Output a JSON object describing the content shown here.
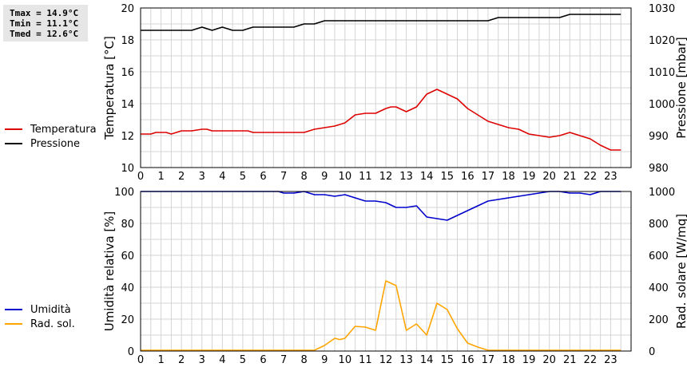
{
  "stats": {
    "tmax": "Tmax = 14.9°C",
    "tmin": "Tmin = 11.1°C",
    "tmed": "Tmed = 12.6°C"
  },
  "colors": {
    "temperature": "#dd0000",
    "pressure": "#000000",
    "humidity": "#0000cc",
    "radiation": "#ffa500",
    "grid": "#d4d4d4"
  },
  "chart_data": [
    {
      "type": "line",
      "x_ticks": [
        "0",
        "1",
        "2",
        "3",
        "4",
        "5",
        "6",
        "7",
        "8",
        "9",
        "10",
        "11",
        "12",
        "13",
        "14",
        "15",
        "16",
        "17",
        "18",
        "19",
        "20",
        "21",
        "22",
        "23"
      ],
      "xlim": [
        0,
        24
      ],
      "ylabel": "Temperatura [°C]",
      "ylim": [
        10,
        20
      ],
      "y_ticks": [
        "10",
        "12",
        "14",
        "16",
        "18",
        "20"
      ],
      "y2label": "Pressione [mbar]",
      "y2lim": [
        980,
        1030
      ],
      "y2_ticks": [
        "980",
        "990",
        "1000",
        "1010",
        "1020",
        "1030"
      ],
      "grid": true,
      "legend_position": "left",
      "series": [
        {
          "name": "Temperatura",
          "axis": "left",
          "x": [
            0,
            0.5,
            0.75,
            1,
            1.25,
            1.5,
            2,
            2.5,
            3,
            3.25,
            3.5,
            4,
            4.5,
            5,
            5.25,
            5.5,
            6,
            6.5,
            7,
            7.5,
            8,
            8.5,
            9,
            9.5,
            9.75,
            10,
            10.5,
            11,
            11.5,
            12,
            12.25,
            12.5,
            13,
            13.5,
            14,
            14.5,
            15,
            15.5,
            16,
            16.5,
            17,
            17.5,
            18,
            18.5,
            19,
            19.5,
            20,
            20.5,
            21,
            21.5,
            22,
            22.5,
            23,
            23.5
          ],
          "y": [
            12.1,
            12.1,
            12.2,
            12.2,
            12.2,
            12.1,
            12.3,
            12.3,
            12.4,
            12.4,
            12.3,
            12.3,
            12.3,
            12.3,
            12.3,
            12.2,
            12.2,
            12.2,
            12.2,
            12.2,
            12.2,
            12.4,
            12.5,
            12.6,
            12.7,
            12.8,
            13.3,
            13.4,
            13.4,
            13.7,
            13.8,
            13.8,
            13.5,
            13.8,
            14.6,
            14.9,
            14.6,
            14.3,
            13.7,
            13.3,
            12.9,
            12.7,
            12.5,
            12.4,
            12.1,
            12.0,
            11.9,
            12.0,
            12.2,
            12.0,
            11.8,
            11.4,
            11.1,
            11.1
          ]
        },
        {
          "name": "Pressione",
          "axis": "right",
          "x": [
            0,
            2.5,
            3,
            3.5,
            4,
            4.5,
            5,
            5.5,
            6,
            6.5,
            7,
            7.5,
            8,
            8.5,
            9,
            9.5,
            10,
            10.5,
            11,
            11.5,
            12,
            12.5,
            13,
            13.5,
            14,
            14.5,
            15,
            15.5,
            16,
            16.5,
            17,
            17.5,
            18,
            18.5,
            19,
            19.5,
            20,
            20.5,
            21,
            21.5,
            22,
            22.5,
            23,
            23.5
          ],
          "y": [
            1023,
            1023,
            1024,
            1023,
            1024,
            1023,
            1023,
            1024,
            1024,
            1024,
            1024,
            1024,
            1025,
            1025,
            1026,
            1026,
            1026,
            1026,
            1026,
            1026,
            1026,
            1026,
            1026,
            1026,
            1026,
            1026,
            1026,
            1026,
            1026,
            1026,
            1026,
            1027,
            1027,
            1027,
            1027,
            1027,
            1027,
            1027,
            1028,
            1028,
            1028,
            1028,
            1028,
            1028
          ]
        }
      ]
    },
    {
      "type": "line",
      "x_ticks": [
        "0",
        "1",
        "2",
        "3",
        "4",
        "5",
        "6",
        "7",
        "8",
        "9",
        "10",
        "11",
        "12",
        "13",
        "14",
        "15",
        "16",
        "17",
        "18",
        "19",
        "20",
        "21",
        "22",
        "23"
      ],
      "xlim": [
        0,
        24
      ],
      "ylabel": "Umidità relativa [%]",
      "ylim": [
        0,
        100
      ],
      "y_ticks": [
        "0",
        "20",
        "40",
        "60",
        "80",
        "100"
      ],
      "y2label": "Rad. solare [W/mq]",
      "y2lim": [
        0,
        1000
      ],
      "y2_ticks": [
        "0",
        "200",
        "400",
        "600",
        "800",
        "1000"
      ],
      "grid": true,
      "legend_position": "left",
      "series": [
        {
          "name": "Umidità",
          "axis": "left",
          "x": [
            0,
            1,
            2,
            3,
            4,
            5,
            6,
            6.75,
            7,
            7.5,
            8,
            8.5,
            9,
            9.5,
            10,
            10.5,
            11,
            11.5,
            12,
            12.5,
            13,
            13.5,
            14,
            14.5,
            15,
            15.5,
            16,
            16.5,
            17,
            17.5,
            18,
            18.5,
            19,
            19.5,
            20,
            20.5,
            21,
            21.5,
            22,
            22.5,
            23,
            23.5
          ],
          "y": [
            100,
            100,
            100,
            100,
            100,
            100,
            100,
            100,
            99,
            99,
            100,
            98,
            98,
            97,
            98,
            96,
            94,
            94,
            93,
            90,
            90,
            91,
            84,
            83,
            82,
            85,
            88,
            91,
            94,
            95,
            96,
            97,
            98,
            99,
            100,
            100,
            99,
            99,
            98,
            100,
            100,
            100
          ]
        },
        {
          "name": "Rad. sol.",
          "axis": "right",
          "x": [
            0,
            1,
            2,
            3,
            4,
            5,
            6,
            7,
            8,
            8.5,
            9,
            9.5,
            9.75,
            10,
            10.5,
            11,
            11.5,
            12,
            12.5,
            13,
            13.5,
            14,
            14.5,
            15,
            15.5,
            16,
            16.5,
            17,
            18,
            19,
            20,
            21,
            22,
            23,
            23.5
          ],
          "y": [
            5,
            5,
            5,
            5,
            5,
            5,
            5,
            5,
            5,
            5,
            35,
            80,
            72,
            80,
            155,
            150,
            130,
            440,
            410,
            130,
            170,
            100,
            300,
            260,
            140,
            50,
            25,
            5,
            5,
            5,
            5,
            5,
            5,
            5,
            5
          ]
        }
      ]
    }
  ]
}
